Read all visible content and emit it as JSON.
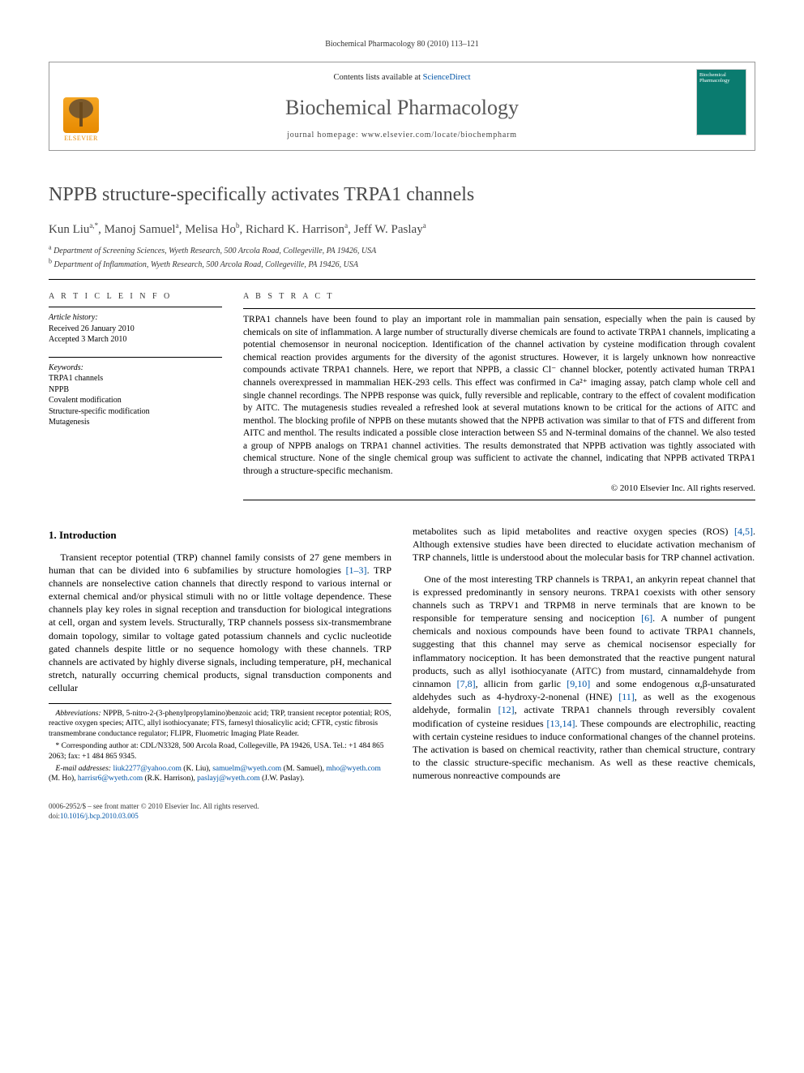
{
  "running_head": "Biochemical Pharmacology 80 (2010) 113–121",
  "header": {
    "contents_prefix": "Contents lists available at ",
    "contents_link": "ScienceDirect",
    "journal_title": "Biochemical Pharmacology",
    "homepage_prefix": "journal homepage: ",
    "homepage_url": "www.elsevier.com/locate/biochempharm",
    "publisher_logo": "ELSEVIER",
    "cover_label": "Biochemical Pharmacology"
  },
  "article": {
    "title": "NPPB structure-specifically activates TRPA1 channels",
    "authors_html": "Kun Liu",
    "authors": [
      {
        "name": "Kun Liu",
        "affil": "a,",
        "corr": "*"
      },
      {
        "name": "Manoj Samuel",
        "affil": "a"
      },
      {
        "name": "Melisa Ho",
        "affil": "b"
      },
      {
        "name": "Richard K. Harrison",
        "affil": "a"
      },
      {
        "name": "Jeff W. Paslay",
        "affil": "a"
      }
    ],
    "affiliations": [
      {
        "sup": "a",
        "text": "Department of Screening Sciences, Wyeth Research, 500 Arcola Road, Collegeville, PA 19426, USA"
      },
      {
        "sup": "b",
        "text": "Department of Inflammation, Wyeth Research, 500 Arcola Road, Collegeville, PA 19426, USA"
      }
    ]
  },
  "info": {
    "heading": "A R T I C L E   I N F O",
    "history_label": "Article history:",
    "received": "Received 26 January 2010",
    "accepted": "Accepted 3 March 2010",
    "keywords_label": "Keywords:",
    "keywords": [
      "TRPA1 channels",
      "NPPB",
      "Covalent modification",
      "Structure-specific modification",
      "Mutagenesis"
    ]
  },
  "abstract": {
    "heading": "A B S T R A C T",
    "text": "TRPA1 channels have been found to play an important role in mammalian pain sensation, especially when the pain is caused by chemicals on site of inflammation. A large number of structurally diverse chemicals are found to activate TRPA1 channels, implicating a potential chemosensor in neuronal nociception. Identification of the channel activation by cysteine modification through covalent chemical reaction provides arguments for the diversity of the agonist structures. However, it is largely unknown how nonreactive compounds activate TRPA1 channels. Here, we report that NPPB, a classic Cl⁻ channel blocker, potently activated human TRPA1 channels overexpressed in mammalian HEK-293 cells. This effect was confirmed in Ca²⁺ imaging assay, patch clamp whole cell and single channel recordings. The NPPB response was quick, fully reversible and replicable, contrary to the effect of covalent modification by AITC. The mutagenesis studies revealed a refreshed look at several mutations known to be critical for the actions of AITC and menthol. The blocking profile of NPPB on these mutants showed that the NPPB activation was similar to that of FTS and different from AITC and menthol. The results indicated a possible close interaction between S5 and N-terminal domains of the channel. We also tested a group of NPPB analogs on TRPA1 channel activities. The results demonstrated that NPPB activation was tightly associated with chemical structure. None of the single chemical group was sufficient to activate the channel, indicating that NPPB activated TRPA1 through a structure-specific mechanism.",
    "copyright": "© 2010 Elsevier Inc. All rights reserved."
  },
  "body": {
    "section_heading": "1. Introduction",
    "p1": "Transient receptor potential (TRP) channel family consists of 27 gene members in human that can be divided into 6 subfamilies by structure homologies [1–3]. TRP channels are nonselective cation channels that directly respond to various internal or external chemical and/or physical stimuli with no or little voltage dependence. These channels play key roles in signal reception and transduction for biological integrations at cell, organ and system levels. Structurally, TRP channels possess six-transmembrane domain topology, similar to voltage gated potassium channels and cyclic nucleotide gated channels despite little or no sequence homology with these channels. TRP channels are activated by highly diverse signals, including temperature, pH, mechanical stretch, naturally occurring chemical products, signal transduction components and cellular",
    "p1_ref": "[1–3]",
    "p2a": "metabolites such as lipid metabolites and reactive oxygen species (ROS) [4,5]. Although extensive studies have been directed to elucidate activation mechanism of TRP channels, little is understood about the molecular basis for TRP channel activation.",
    "p2a_ref": "[4,5]",
    "p3": "One of the most interesting TRP channels is TRPA1, an ankyrin repeat channel that is expressed predominantly in sensory neurons. TRPA1 coexists with other sensory channels such as TRPV1 and TRPM8 in nerve terminals that are known to be responsible for temperature sensing and nociception [6]. A number of pungent chemicals and noxious compounds have been found to activate TRPA1 channels, suggesting that this channel may serve as chemical nocisensor especially for inflammatory nociception. It has been demonstrated that the reactive pungent natural products, such as allyl isothiocyanate (AITC) from mustard, cinnamaldehyde from cinnamon [7,8], allicin from garlic [9,10] and some endogenous α,β-unsaturated aldehydes such as 4-hydroxy-2-nonenal (HNE) [11], as well as the exogenous aldehyde, formalin [12], activate TRPA1 channels through reversibly covalent modification of cysteine residues [13,14]. These compounds are electrophilic, reacting with certain cysteine residues to induce conformational changes of the channel proteins. The activation is based on chemical reactivity, rather than chemical structure, contrary to the classic structure-specific mechanism. As well as these reactive chemicals, numerous nonreactive compounds are",
    "p3_refs": [
      "[6]",
      "[7,8]",
      "[9,10]",
      "[11]",
      "[12]",
      "[13,14]"
    ]
  },
  "footnotes": {
    "abbrev_label": "Abbreviations:",
    "abbrev_text": " NPPB, 5-nitro-2-(3-phenylpropylamino)benzoic acid; TRP, transient receptor potential; ROS, reactive oxygen species; AITC, allyl isothiocyanate; FTS, farnesyl thiosalicylic acid; CFTR, cystic fibrosis transmembrane conductance regulator; FLIPR, Fluometric Imaging Plate Reader.",
    "corr_label": "* Corresponding author at:",
    "corr_text": " CDL/N3328, 500 Arcola Road, Collegeville, PA 19426, USA. Tel.: +1 484 865 2063; fax: +1 484 865 9345.",
    "email_label": "E-mail addresses:",
    "emails": [
      {
        "addr": "liuk2277@yahoo.com",
        "who": " (K. Liu), "
      },
      {
        "addr": "samuelm@wyeth.com",
        "who": " (M. Samuel), "
      },
      {
        "addr": "mho@wyeth.com",
        "who": " (M. Ho), "
      },
      {
        "addr": "harrisr6@wyeth.com",
        "who": " (R.K. Harrison), "
      },
      {
        "addr": "paslayj@wyeth.com",
        "who": " (J.W. Paslay)."
      }
    ]
  },
  "footer": {
    "line1": "0006-2952/$ – see front matter © 2010 Elsevier Inc. All rights reserved.",
    "doi_label": "doi:",
    "doi": "10.1016/j.bcp.2010.03.005"
  },
  "colors": {
    "link": "#0054a6",
    "elsevier_orange": "#e78a00",
    "cover_green": "#0a7b6f",
    "title_gray": "#484848"
  }
}
